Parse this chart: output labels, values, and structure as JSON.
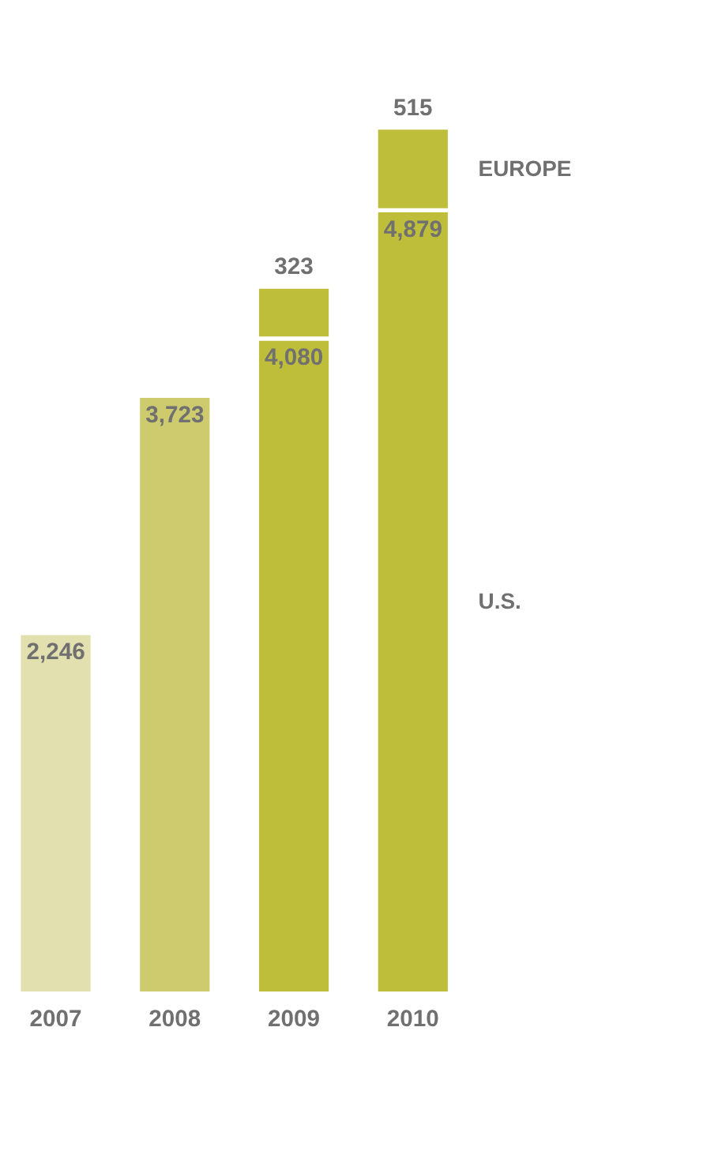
{
  "chart_data": {
    "type": "bar",
    "stacked": true,
    "categories": [
      "2007",
      "2008",
      "2009",
      "2010"
    ],
    "series": [
      {
        "name": "U.S.",
        "colors": [
          "#e2e0ae",
          "#cdcb6e",
          "#bebe3a",
          "#bebe3a"
        ],
        "values": [
          2246,
          3723,
          4080,
          4879
        ],
        "value_labels": [
          "2,246",
          "3,723",
          "4,080",
          "4,879"
        ]
      },
      {
        "name": "EUROPE",
        "color": "#bebe3a",
        "values": [
          null,
          null,
          323,
          515
        ],
        "value_labels": [
          null,
          null,
          "323",
          "515"
        ]
      }
    ]
  }
}
